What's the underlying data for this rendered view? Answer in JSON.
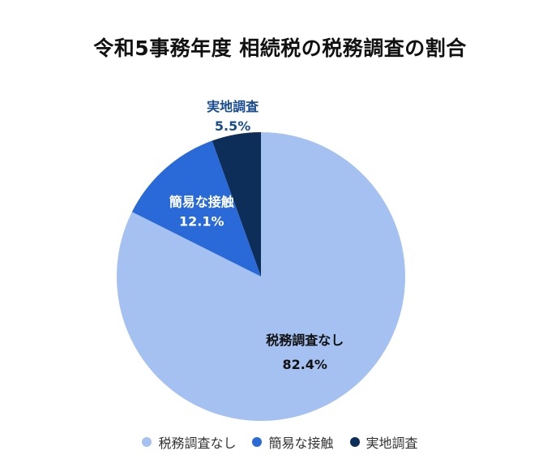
{
  "chart_data": {
    "type": "pie",
    "title": "令和5事務年度 相続税の税務調査の割合",
    "slices": [
      {
        "label": "税務調査なし",
        "value": 82.4,
        "value_label": "82.4%",
        "color": "#a5c1f2",
        "label_color": "#111111"
      },
      {
        "label": "簡易な接触",
        "value": 12.1,
        "value_label": "12.1%",
        "color": "#2a6ad8",
        "label_color": "#ffffff"
      },
      {
        "label": "実地調査",
        "value": 5.5,
        "value_label": "5.5%",
        "color": "#0e2e5a",
        "label_color": "#1a4d8f"
      }
    ],
    "start_angle_deg": 0,
    "direction": "clockwise",
    "legend": {
      "position": "bottom",
      "items": [
        "税務調査なし",
        "簡易な接触",
        "実地調査"
      ]
    }
  }
}
